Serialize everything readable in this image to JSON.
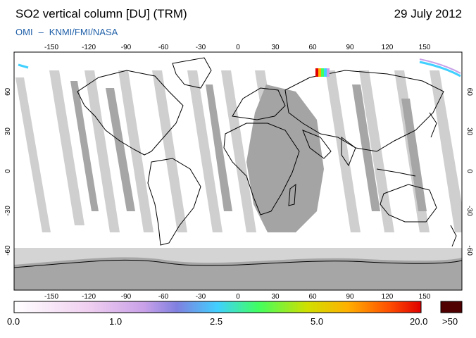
{
  "header": {
    "title": "SO2 vertical column [DU] (TRM)",
    "date": "29 July 2012",
    "source_prefix": "OMI",
    "source_agencies": "KNMI/FMI/NASA"
  },
  "map": {
    "lon_ticks": [
      "-150",
      "-120",
      "-90",
      "-60",
      "-30",
      "0",
      "30",
      "60",
      "90",
      "120",
      "150"
    ],
    "lat_ticks": [
      "60",
      "30",
      "0",
      "-30",
      "-60"
    ],
    "colors": {
      "ocean": "#ffffff",
      "swath_gap": "#c8c8c8",
      "sunlit_gap": "#a0a0a0",
      "polar_dark": "#a8a8a8",
      "coast": "#000000"
    }
  },
  "colorbar": {
    "labels": [
      "0.0",
      "1.0",
      "2.5",
      "5.0",
      "20.0",
      ">50"
    ],
    "colors": [
      "#ffffff",
      "#f0d0f0",
      "#c8a0e8",
      "#8080e0",
      "#40d0ff",
      "#40ff60",
      "#d0e000",
      "#ffb000",
      "#ff5000",
      "#e00000"
    ],
    "overflow_color": "#500000"
  }
}
